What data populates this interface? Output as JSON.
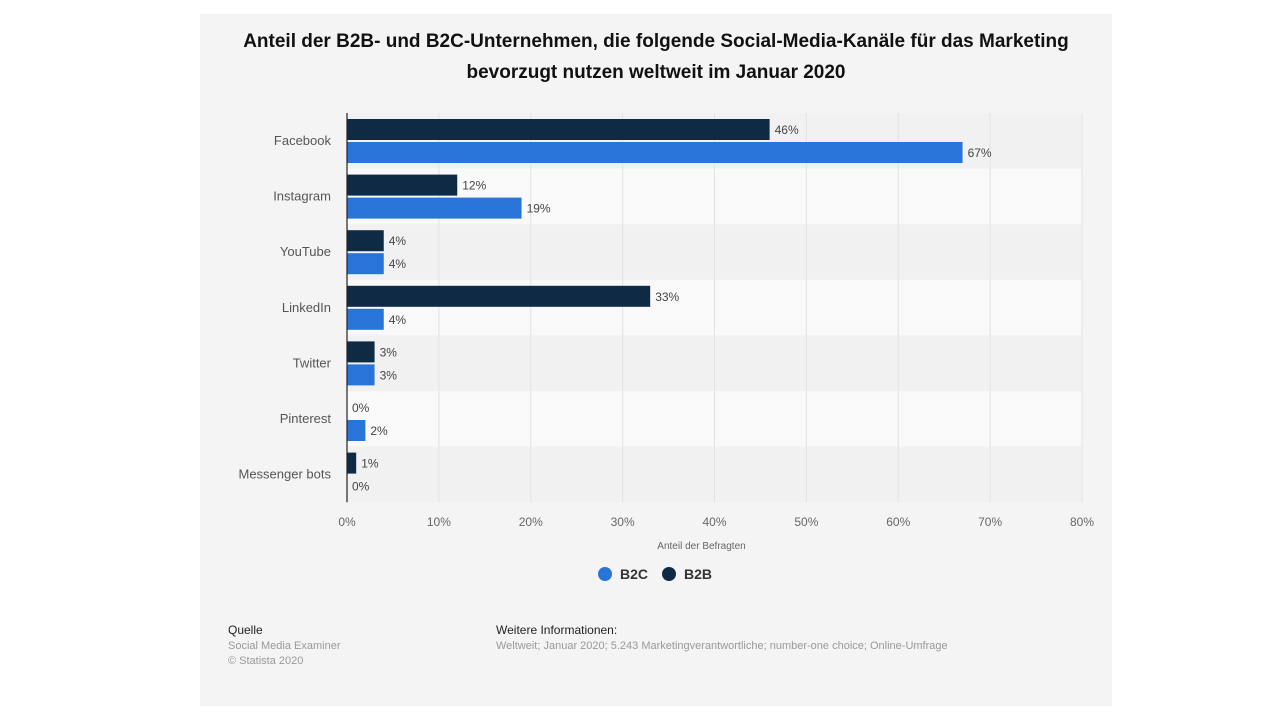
{
  "chart_data": {
    "type": "bar",
    "orientation": "horizontal",
    "title": "Anteil der B2B- und B2C-Unternehmen, die folgende Social-Media-Kanäle für das Marketing bevorzugt nutzen weltweit im Januar 2020",
    "xlabel": "Anteil der Befragten",
    "ylabel": "",
    "xlim": [
      0,
      80
    ],
    "xticks": [
      "0%",
      "10%",
      "20%",
      "30%",
      "40%",
      "50%",
      "60%",
      "70%",
      "80%"
    ],
    "categories": [
      "Facebook",
      "Instagram",
      "YouTube",
      "LinkedIn",
      "Twitter",
      "Pinterest",
      "Messenger bots"
    ],
    "series": [
      {
        "name": "B2B",
        "color": "#0f2a45",
        "values": [
          46,
          12,
          4,
          33,
          3,
          0,
          1
        ]
      },
      {
        "name": "B2C",
        "color": "#2874d9",
        "values": [
          67,
          19,
          4,
          4,
          3,
          2,
          0
        ]
      }
    ],
    "legend_order": [
      "B2C",
      "B2B"
    ],
    "legend_position": "bottom",
    "grid": true
  },
  "footer": {
    "source_label": "Quelle",
    "source": "Social Media Examiner",
    "copyright": "© Statista 2020",
    "info_label": "Weitere Informationen:",
    "info": "Weltweit; Januar 2020; 5.243 Marketingverantwortliche; number-one choice; Online-Umfrage"
  }
}
